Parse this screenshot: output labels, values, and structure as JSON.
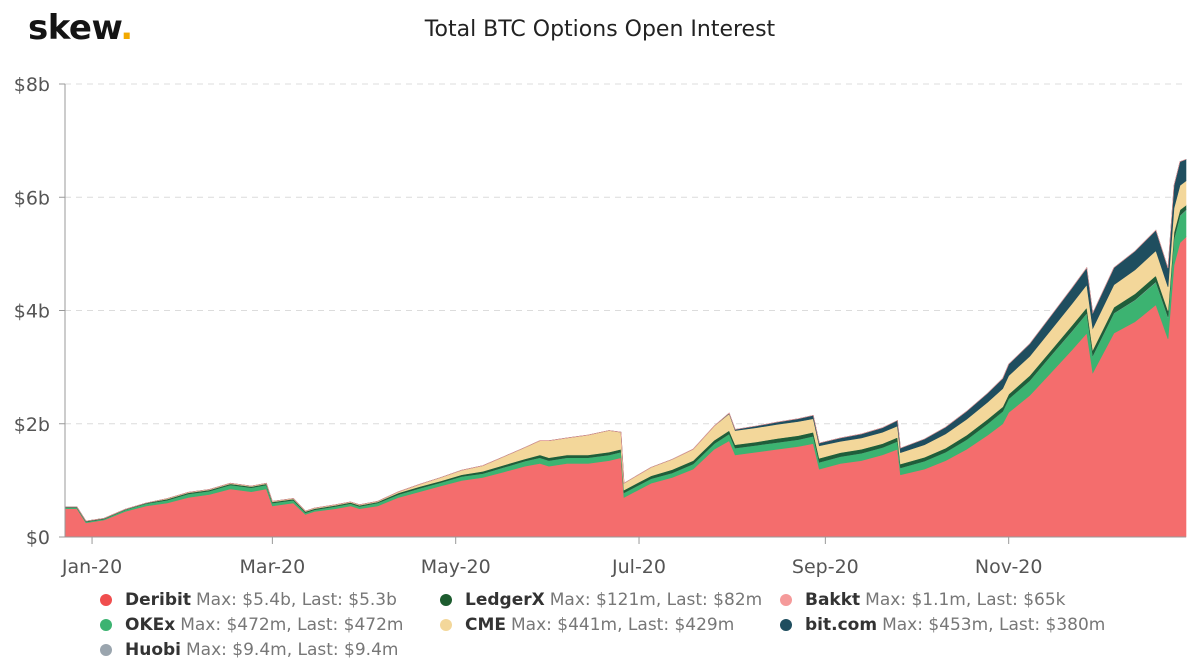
{
  "logo": {
    "text": "skew",
    "dot": "."
  },
  "chart_data": {
    "type": "area",
    "stacked": true,
    "title": "Total BTC Options Open Interest",
    "xlabel": "",
    "ylabel": "",
    "yticks": [
      "$0",
      "$2b",
      "$4b",
      "$6b",
      "$8b"
    ],
    "ylim": [
      0,
      8
    ],
    "y_unit": "billion USD",
    "xticks": [
      "Jan-20",
      "Mar-20",
      "May-20",
      "Jul-20",
      "Sep-20",
      "Nov-20"
    ],
    "xtick_dates": [
      "2020-01-01",
      "2020-03-01",
      "2020-05-01",
      "2020-07-01",
      "2020-09-01",
      "2020-11-01"
    ],
    "grid": "horizontal dashed",
    "legend_position": "bottom",
    "x": [
      "2019-12-23",
      "2019-12-27",
      "2019-12-30",
      "2020-01-05",
      "2020-01-12",
      "2020-01-19",
      "2020-01-26",
      "2020-02-02",
      "2020-02-09",
      "2020-02-16",
      "2020-02-23",
      "2020-02-28",
      "2020-03-01",
      "2020-03-08",
      "2020-03-12",
      "2020-03-15",
      "2020-03-22",
      "2020-03-27",
      "2020-03-30",
      "2020-04-05",
      "2020-04-12",
      "2020-04-19",
      "2020-04-26",
      "2020-05-03",
      "2020-05-10",
      "2020-05-17",
      "2020-05-24",
      "2020-05-29",
      "2020-06-01",
      "2020-06-07",
      "2020-06-14",
      "2020-06-21",
      "2020-06-25",
      "2020-06-26",
      "2020-07-05",
      "2020-07-12",
      "2020-07-19",
      "2020-07-26",
      "2020-07-31",
      "2020-08-02",
      "2020-08-09",
      "2020-08-16",
      "2020-08-23",
      "2020-08-28",
      "2020-08-30",
      "2020-09-06",
      "2020-09-13",
      "2020-09-20",
      "2020-09-25",
      "2020-09-26",
      "2020-10-04",
      "2020-10-11",
      "2020-10-18",
      "2020-10-25",
      "2020-10-30",
      "2020-11-01",
      "2020-11-08",
      "2020-11-15",
      "2020-11-22",
      "2020-11-27",
      "2020-11-29",
      "2020-12-06",
      "2020-12-13",
      "2020-12-20",
      "2020-12-24",
      "2020-12-26",
      "2020-12-28",
      "2020-12-30"
    ],
    "series": [
      {
        "name": "Deribit",
        "color": "#f46d6d",
        "values": [
          0.5,
          0.5,
          0.25,
          0.3,
          0.45,
          0.55,
          0.6,
          0.7,
          0.75,
          0.85,
          0.8,
          0.85,
          0.55,
          0.6,
          0.4,
          0.45,
          0.5,
          0.55,
          0.5,
          0.55,
          0.7,
          0.8,
          0.9,
          1.0,
          1.05,
          1.15,
          1.25,
          1.3,
          1.25,
          1.3,
          1.3,
          1.35,
          1.4,
          0.7,
          0.95,
          1.05,
          1.2,
          1.55,
          1.7,
          1.45,
          1.5,
          1.55,
          1.6,
          1.65,
          1.2,
          1.3,
          1.35,
          1.45,
          1.55,
          1.1,
          1.2,
          1.35,
          1.55,
          1.8,
          2.0,
          2.2,
          2.5,
          2.9,
          3.3,
          3.6,
          2.9,
          3.6,
          3.8,
          4.1,
          3.5,
          4.8,
          5.2,
          5.3
        ]
      },
      {
        "name": "OKEx",
        "color": "#3cb371",
        "values": [
          0.02,
          0.02,
          0.02,
          0.02,
          0.03,
          0.04,
          0.05,
          0.06,
          0.06,
          0.07,
          0.07,
          0.07,
          0.05,
          0.05,
          0.03,
          0.03,
          0.04,
          0.04,
          0.04,
          0.05,
          0.05,
          0.06,
          0.06,
          0.07,
          0.07,
          0.08,
          0.09,
          0.1,
          0.1,
          0.1,
          0.1,
          0.1,
          0.1,
          0.08,
          0.08,
          0.08,
          0.09,
          0.1,
          0.12,
          0.12,
          0.12,
          0.12,
          0.12,
          0.13,
          0.12,
          0.12,
          0.13,
          0.13,
          0.14,
          0.12,
          0.14,
          0.15,
          0.17,
          0.2,
          0.22,
          0.24,
          0.26,
          0.3,
          0.33,
          0.35,
          0.3,
          0.35,
          0.38,
          0.4,
          0.38,
          0.45,
          0.47,
          0.47
        ]
      },
      {
        "name": "Huobi",
        "color": "#9aa5ae",
        "values": [
          0,
          0,
          0,
          0,
          0,
          0,
          0,
          0,
          0,
          0,
          0,
          0,
          0,
          0,
          0,
          0,
          0,
          0,
          0,
          0,
          0,
          0,
          0,
          0,
          0,
          0,
          0,
          0,
          0,
          0,
          0,
          0,
          0,
          0,
          0,
          0,
          0,
          0,
          0,
          0,
          0,
          0,
          0,
          0,
          0,
          0,
          0,
          0,
          0,
          0,
          0,
          0,
          0,
          0,
          0,
          0.001,
          0.002,
          0.003,
          0.004,
          0.005,
          0.005,
          0.006,
          0.007,
          0.008,
          0.008,
          0.009,
          0.009,
          0.009
        ]
      },
      {
        "name": "LedgerX",
        "color": "#1f5e3a",
        "values": [
          0.01,
          0.01,
          0.01,
          0.01,
          0.01,
          0.01,
          0.02,
          0.02,
          0.02,
          0.02,
          0.02,
          0.02,
          0.02,
          0.02,
          0.02,
          0.02,
          0.02,
          0.02,
          0.02,
          0.02,
          0.03,
          0.03,
          0.03,
          0.03,
          0.04,
          0.04,
          0.04,
          0.05,
          0.05,
          0.05,
          0.05,
          0.05,
          0.05,
          0.05,
          0.05,
          0.06,
          0.06,
          0.06,
          0.06,
          0.06,
          0.06,
          0.07,
          0.07,
          0.07,
          0.07,
          0.07,
          0.07,
          0.07,
          0.07,
          0.07,
          0.07,
          0.07,
          0.08,
          0.08,
          0.08,
          0.08,
          0.09,
          0.09,
          0.1,
          0.1,
          0.1,
          0.1,
          0.11,
          0.11,
          0.11,
          0.12,
          0.1,
          0.08
        ]
      },
      {
        "name": "CME",
        "color": "#f3d79a",
        "values": [
          0,
          0,
          0,
          0,
          0,
          0,
          0.01,
          0.01,
          0.01,
          0.01,
          0.01,
          0.01,
          0.01,
          0.01,
          0.01,
          0.01,
          0.01,
          0.01,
          0.01,
          0.01,
          0.02,
          0.04,
          0.06,
          0.08,
          0.1,
          0.15,
          0.2,
          0.25,
          0.3,
          0.3,
          0.35,
          0.38,
          0.3,
          0.12,
          0.15,
          0.18,
          0.2,
          0.25,
          0.3,
          0.25,
          0.25,
          0.25,
          0.25,
          0.24,
          0.22,
          0.2,
          0.2,
          0.2,
          0.2,
          0.2,
          0.22,
          0.25,
          0.28,
          0.3,
          0.32,
          0.33,
          0.34,
          0.36,
          0.38,
          0.4,
          0.38,
          0.4,
          0.42,
          0.44,
          0.42,
          0.43,
          0.43,
          0.43
        ]
      },
      {
        "name": "bit.com",
        "color": "#1f4e5f",
        "values": [
          0,
          0,
          0,
          0,
          0,
          0,
          0,
          0,
          0,
          0,
          0,
          0,
          0,
          0,
          0,
          0,
          0,
          0,
          0,
          0,
          0,
          0,
          0,
          0,
          0,
          0,
          0,
          0,
          0,
          0,
          0,
          0,
          0,
          0,
          0,
          0,
          0,
          0,
          0.01,
          0.02,
          0.03,
          0.04,
          0.05,
          0.06,
          0.05,
          0.06,
          0.07,
          0.08,
          0.1,
          0.08,
          0.1,
          0.12,
          0.14,
          0.16,
          0.18,
          0.2,
          0.22,
          0.25,
          0.28,
          0.3,
          0.27,
          0.3,
          0.33,
          0.36,
          0.33,
          0.4,
          0.42,
          0.38
        ]
      },
      {
        "name": "Bakkt",
        "color": "#f59a9a",
        "values": [
          0,
          0,
          0,
          0,
          0,
          0,
          0,
          0,
          0,
          0,
          0,
          0,
          0,
          0,
          0,
          0,
          0,
          0,
          0,
          0,
          0,
          0,
          0,
          0,
          0,
          0,
          0,
          0,
          0,
          0,
          0,
          0,
          0,
          0,
          0,
          0,
          0,
          0,
          0,
          0,
          0,
          0,
          0,
          0,
          0,
          0,
          0,
          0,
          0,
          0,
          0,
          0,
          0,
          0,
          0,
          0,
          0,
          0,
          0,
          0,
          0,
          0,
          0,
          0,
          0,
          0,
          0,
          0
        ]
      }
    ],
    "legend": [
      {
        "name": "Deribit",
        "stats": "Max: $5.4b, Last: $5.3b",
        "color": "#f04e4e"
      },
      {
        "name": "LedgerX",
        "stats": "Max: $121m, Last: $82m",
        "color": "#1d5c2f"
      },
      {
        "name": "Bakkt",
        "stats": "Max: $1.1m, Last: $65k",
        "color": "#f59a9a"
      },
      {
        "name": "OKEx",
        "stats": "Max: $472m, Last: $472m",
        "color": "#3cb371"
      },
      {
        "name": "CME",
        "stats": "Max: $441m, Last: $429m",
        "color": "#f3d79a"
      },
      {
        "name": "bit.com",
        "stats": "Max: $453m, Last: $380m",
        "color": "#1f4e5f"
      },
      {
        "name": "Huobi",
        "stats": "Max: $9.4m, Last: $9.4m",
        "color": "#9aa5ae"
      }
    ]
  }
}
